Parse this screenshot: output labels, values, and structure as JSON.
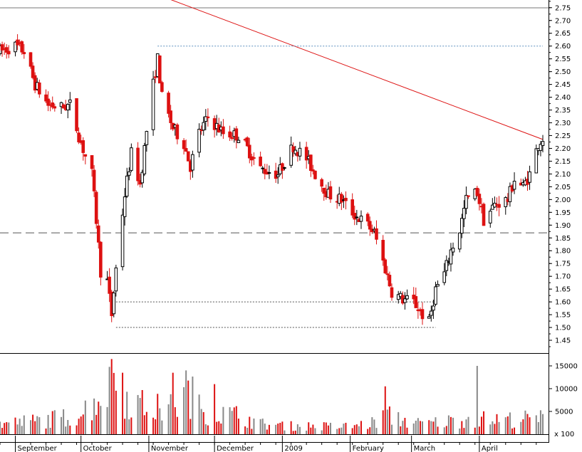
{
  "chart_data": [
    {
      "type": "candlestick",
      "title": "",
      "x_axis": {
        "type": "date",
        "range": [
          "2008-08-25",
          "2009-04-30"
        ],
        "month_labels": [
          "September",
          "October",
          "November",
          "December",
          "2009",
          "February",
          "March",
          "April"
        ],
        "month_starts": [
          "2008-09-01",
          "2008-10-01",
          "2008-11-01",
          "2008-12-01",
          "2009-01-01",
          "2009-02-01",
          "2009-03-01",
          "2009-04-01"
        ]
      },
      "y_axis": {
        "range": [
          1.4,
          2.78
        ],
        "ticks": [
          1.45,
          1.5,
          1.55,
          1.6,
          1.65,
          1.7,
          1.75,
          1.8,
          1.85,
          1.9,
          1.95,
          2.0,
          2.05,
          2.1,
          2.15,
          2.2,
          2.25,
          2.3,
          2.35,
          2.4,
          2.45,
          2.5,
          2.55,
          2.6,
          2.65,
          2.7,
          2.75
        ],
        "tick_labels": [
          "1.45",
          "1.50",
          "1.55",
          "1.60",
          "1.65",
          "1.70",
          "1.75",
          "1.80",
          "1.85",
          "1.90",
          "1.95",
          "2.00",
          "2.05",
          "2.10",
          "2.15",
          "2.20",
          "2.25",
          "2.30",
          "2.35",
          "2.40",
          "2.45",
          "2.50",
          "2.55",
          "2.60",
          "2.65",
          "2.70",
          "2.75"
        ],
        "position": "right"
      },
      "colors": {
        "up": "#000000",
        "down": "#dd1111",
        "trendline": "#dd1111",
        "support": "#555555"
      },
      "price_anchors": [
        [
          "2008-08-25",
          2.58
        ],
        [
          "2008-09-01",
          2.6
        ],
        [
          "2008-09-05",
          2.58
        ],
        [
          "2008-09-10",
          2.45
        ],
        [
          "2008-09-16",
          2.37
        ],
        [
          "2008-09-22",
          2.36
        ],
        [
          "2008-09-26",
          2.37
        ],
        [
          "2008-09-30",
          2.25
        ],
        [
          "2008-10-03",
          2.17
        ],
        [
          "2008-10-06",
          2.1
        ],
        [
          "2008-10-08",
          1.92
        ],
        [
          "2008-10-10",
          1.72
        ],
        [
          "2008-10-13",
          1.68
        ],
        [
          "2008-10-15",
          1.55
        ],
        [
          "2008-10-17",
          1.73
        ],
        [
          "2008-10-21",
          2.02
        ],
        [
          "2008-10-24",
          2.18
        ],
        [
          "2008-10-28",
          2.06
        ],
        [
          "2008-10-31",
          2.27
        ],
        [
          "2008-11-03",
          2.45
        ],
        [
          "2008-11-05",
          2.55
        ],
        [
          "2008-11-07",
          2.4
        ],
        [
          "2008-11-12",
          2.28
        ],
        [
          "2008-11-17",
          2.22
        ],
        [
          "2008-11-20",
          2.13
        ],
        [
          "2008-11-24",
          2.26
        ],
        [
          "2008-11-28",
          2.32
        ],
        [
          "2008-12-05",
          2.26
        ],
        [
          "2008-12-12",
          2.25
        ],
        [
          "2008-12-16",
          2.2
        ],
        [
          "2008-12-22",
          2.12
        ],
        [
          "2008-12-30",
          2.1
        ],
        [
          "2009-01-06",
          2.21
        ],
        [
          "2009-01-12",
          2.16
        ],
        [
          "2009-01-16",
          2.1
        ],
        [
          "2009-01-22",
          2.02
        ],
        [
          "2009-01-28",
          2.0
        ],
        [
          "2009-02-03",
          1.94
        ],
        [
          "2009-02-09",
          1.9
        ],
        [
          "2009-02-12",
          1.87
        ],
        [
          "2009-02-17",
          1.73
        ],
        [
          "2009-02-20",
          1.64
        ],
        [
          "2009-02-25",
          1.61
        ],
        [
          "2009-03-02",
          1.6
        ],
        [
          "2009-03-06",
          1.55
        ],
        [
          "2009-03-09",
          1.52
        ],
        [
          "2009-03-12",
          1.65
        ],
        [
          "2009-03-16",
          1.71
        ],
        [
          "2009-03-19",
          1.8
        ],
        [
          "2009-03-23",
          1.88
        ],
        [
          "2009-03-26",
          2.0
        ],
        [
          "2009-03-31",
          2.03
        ],
        [
          "2009-04-03",
          1.92
        ],
        [
          "2009-04-08",
          1.98
        ],
        [
          "2009-04-14",
          2.0
        ],
        [
          "2009-04-17",
          2.08
        ],
        [
          "2009-04-21",
          2.05
        ],
        [
          "2009-04-24",
          2.1
        ],
        [
          "2009-04-28",
          2.22
        ],
        [
          "2009-04-30",
          2.24
        ]
      ],
      "reference_lines": [
        {
          "kind": "trendline",
          "from": [
            "2008-10-30",
            2.82
          ],
          "to": [
            "2009-04-30",
            2.235
          ]
        },
        {
          "kind": "horizontal_dashed",
          "y": 1.87
        },
        {
          "kind": "horizontal_dotted",
          "y": 2.6,
          "from": "2008-11-05",
          "to": "2009-04-30"
        },
        {
          "kind": "horizontal_dotted",
          "y": 1.6,
          "from": "2008-10-17",
          "to": "2009-03-12"
        },
        {
          "kind": "horizontal_dotted",
          "y": 1.5,
          "from": "2008-10-17",
          "to": "2009-03-12"
        }
      ]
    },
    {
      "type": "bar",
      "title": "",
      "y_axis": {
        "range": [
          0,
          17500
        ],
        "ticks": [
          5000,
          10000,
          15000
        ],
        "tick_labels": [
          "5000",
          "10000",
          "15000"
        ]
      },
      "unit_label": "x 100",
      "volume_anchors": [
        [
          "2008-08-25",
          2500
        ],
        [
          "2008-09-15",
          3500
        ],
        [
          "2008-09-30",
          4500
        ],
        [
          "2008-10-10",
          9500
        ],
        [
          "2008-10-16",
          12000
        ],
        [
          "2008-10-23",
          8500
        ],
        [
          "2008-10-31",
          6500
        ],
        [
          "2008-11-10",
          6000
        ],
        [
          "2008-11-20",
          9500
        ],
        [
          "2008-11-28",
          5500
        ],
        [
          "2008-12-12",
          4500
        ],
        [
          "2008-12-22",
          2500
        ],
        [
          "2009-01-05",
          2000
        ],
        [
          "2009-01-15",
          2000
        ],
        [
          "2009-01-28",
          1800
        ],
        [
          "2009-02-10",
          2500
        ],
        [
          "2009-02-18",
          4500
        ],
        [
          "2009-02-25",
          3500
        ],
        [
          "2009-03-05",
          2500
        ],
        [
          "2009-03-16",
          3000
        ],
        [
          "2009-03-26",
          3800
        ],
        [
          "2009-04-08",
          3500
        ],
        [
          "2009-04-30",
          3800
        ]
      ],
      "volume_spikes": [
        [
          "2008-10-15",
          16500
        ],
        [
          "2008-10-20",
          13500
        ],
        [
          "2008-11-12",
          13500
        ],
        [
          "2008-11-18",
          14000
        ],
        [
          "2008-12-01",
          11000
        ],
        [
          "2009-02-17",
          10500
        ],
        [
          "2009-03-31",
          15000
        ]
      ]
    }
  ]
}
